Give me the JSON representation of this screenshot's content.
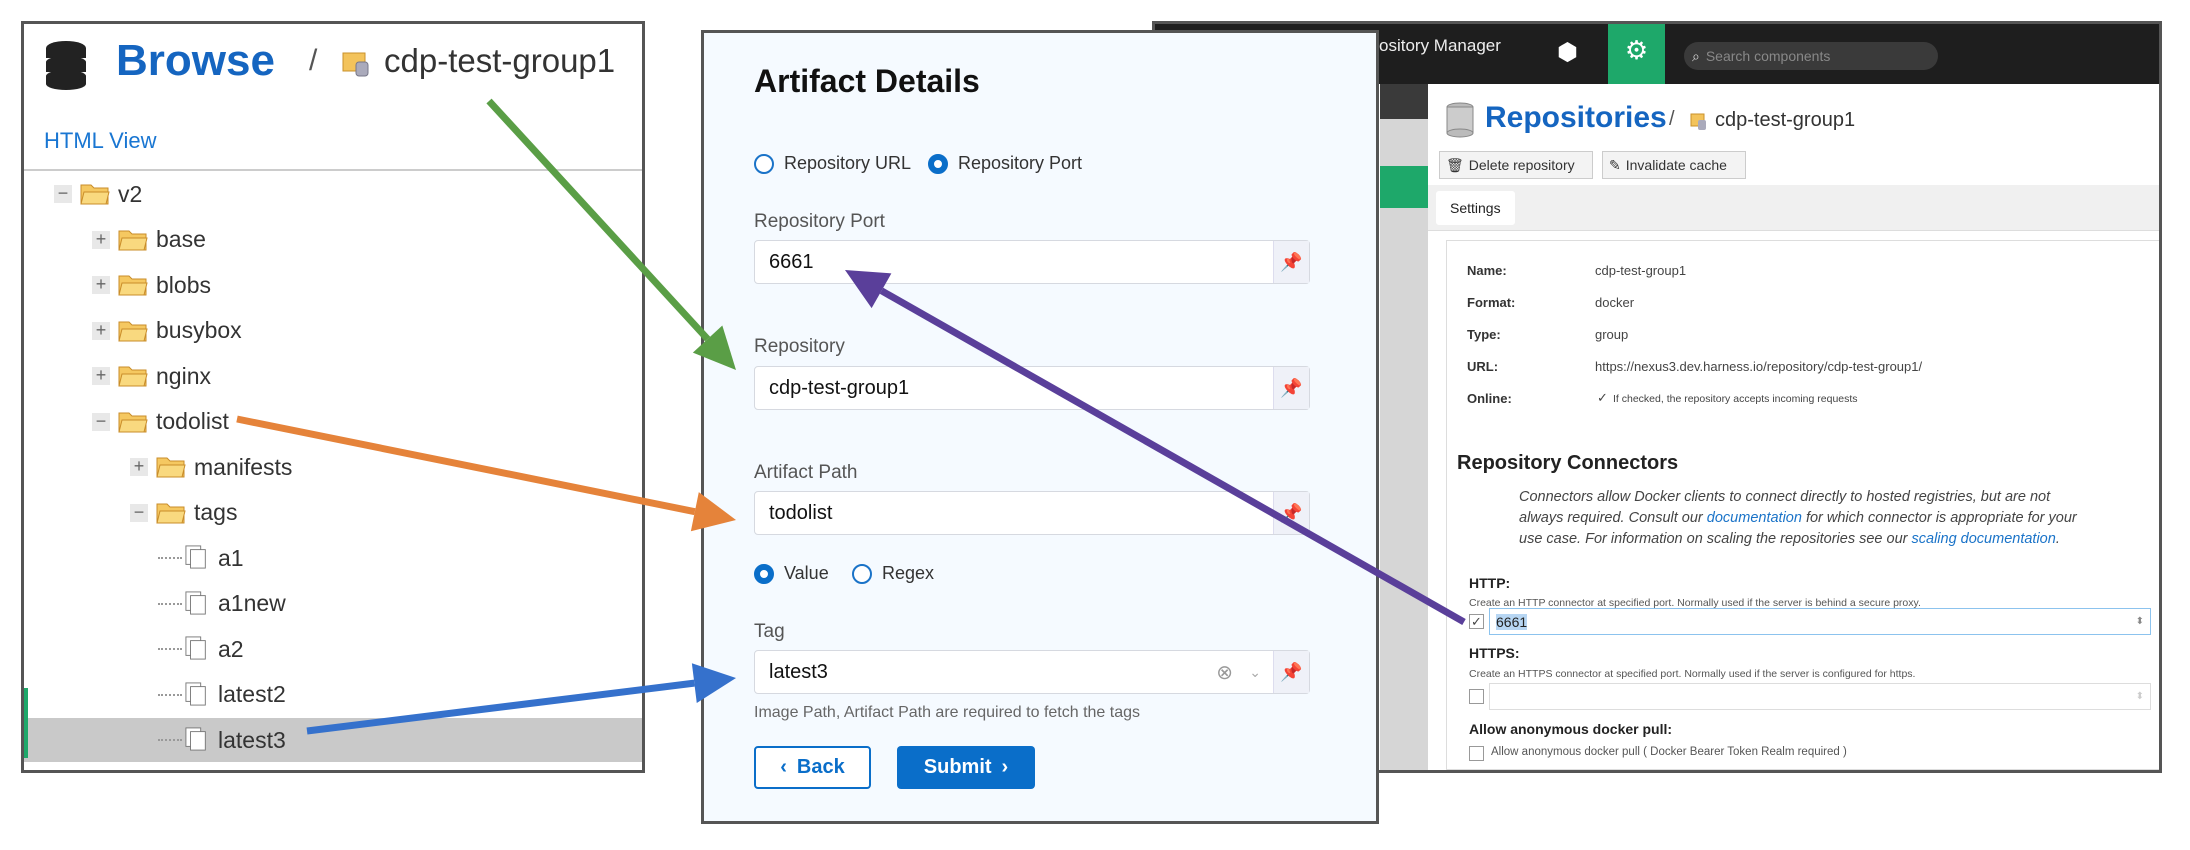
{
  "browse": {
    "title": "Browse",
    "separator": "/",
    "repository": "cdp-test-group1",
    "html_view": "HTML View",
    "tree": [
      {
        "label": "v2",
        "type": "folder",
        "expander": "−"
      },
      {
        "label": "base",
        "type": "folder",
        "expander": "+"
      },
      {
        "label": "blobs",
        "type": "folder",
        "expander": "+"
      },
      {
        "label": "busybox",
        "type": "folder",
        "expander": "+"
      },
      {
        "label": "nginx",
        "type": "folder",
        "expander": "+"
      },
      {
        "label": "todolist",
        "type": "folder",
        "expander": "−"
      },
      {
        "label": "manifests",
        "type": "folder",
        "expander": "+"
      },
      {
        "label": "tags",
        "type": "folder",
        "expander": "−"
      },
      {
        "label": "a1",
        "type": "file"
      },
      {
        "label": "a1new",
        "type": "file"
      },
      {
        "label": "a2",
        "type": "file"
      },
      {
        "label": "latest2",
        "type": "file"
      },
      {
        "label": "latest3",
        "type": "file",
        "selected": true
      }
    ]
  },
  "artifact": {
    "title": "Artifact Details",
    "source_options": [
      "Repository URL",
      "Repository Port"
    ],
    "source_selected": "Repository Port",
    "port_label": "Repository Port",
    "port_value": "6661",
    "repository_label": "Repository",
    "repository_value": "cdp-test-group1",
    "path_label": "Artifact Path",
    "path_value": "todolist",
    "tag_modes": [
      "Value",
      "Regex"
    ],
    "tag_mode_selected": "Value",
    "tag_label": "Tag",
    "tag_value": "latest3",
    "tag_help": "Image Path, Artifact Path are required to fetch the tags",
    "back_label": "Back",
    "submit_label": "Submit",
    "accent": "#0a6ec9"
  },
  "nexus": {
    "app_title": "ository Manager",
    "search_placeholder": "Search components",
    "page_title": "Repositories",
    "separator": "/",
    "repository": "cdp-test-group1",
    "delete_label": "Delete repository",
    "invalidate_label": "Invalidate cache",
    "tab_settings": "Settings",
    "fields": [
      {
        "key": "Name:",
        "value": "cdp-test-group1"
      },
      {
        "key": "Format:",
        "value": "docker"
      },
      {
        "key": "Type:",
        "value": "group"
      },
      {
        "key": "URL:",
        "value": "https://nexus3.dev.harness.io/repository/cdp-test-group1/"
      },
      {
        "key": "Online:",
        "value": "If checked, the repository accepts incoming requests"
      }
    ],
    "connectors_title": "Repository Connectors",
    "connectors_text_1": "Connectors allow Docker clients to connect directly to hosted registries, but are not always required. Consult our ",
    "connectors_link_1": "documentation",
    "connectors_text_2": " for which connector is appropriate for your use case. For information on scaling the repositories see our ",
    "connectors_link_2": "scaling documentation",
    "connectors_text_3": ".",
    "http_label": "HTTP:",
    "http_desc": "Create an HTTP connector at specified port. Normally used if the server is behind a secure proxy.",
    "http_port": "6661",
    "http_checked": true,
    "https_label": "HTTPS:",
    "https_desc": "Create an HTTPS connector at specified port. Normally used if the server is configured for https.",
    "https_checked": false,
    "anon_label": "Allow anonymous docker pull:",
    "anon_desc": "Allow anonymous docker pull ( Docker Bearer Token Realm required )",
    "brand_green": "#1ea86a"
  },
  "arrows": {
    "green": "#5a9e46",
    "orange": "#e5833a",
    "blue": "#3571cc",
    "purple": "#5a3f9a"
  }
}
